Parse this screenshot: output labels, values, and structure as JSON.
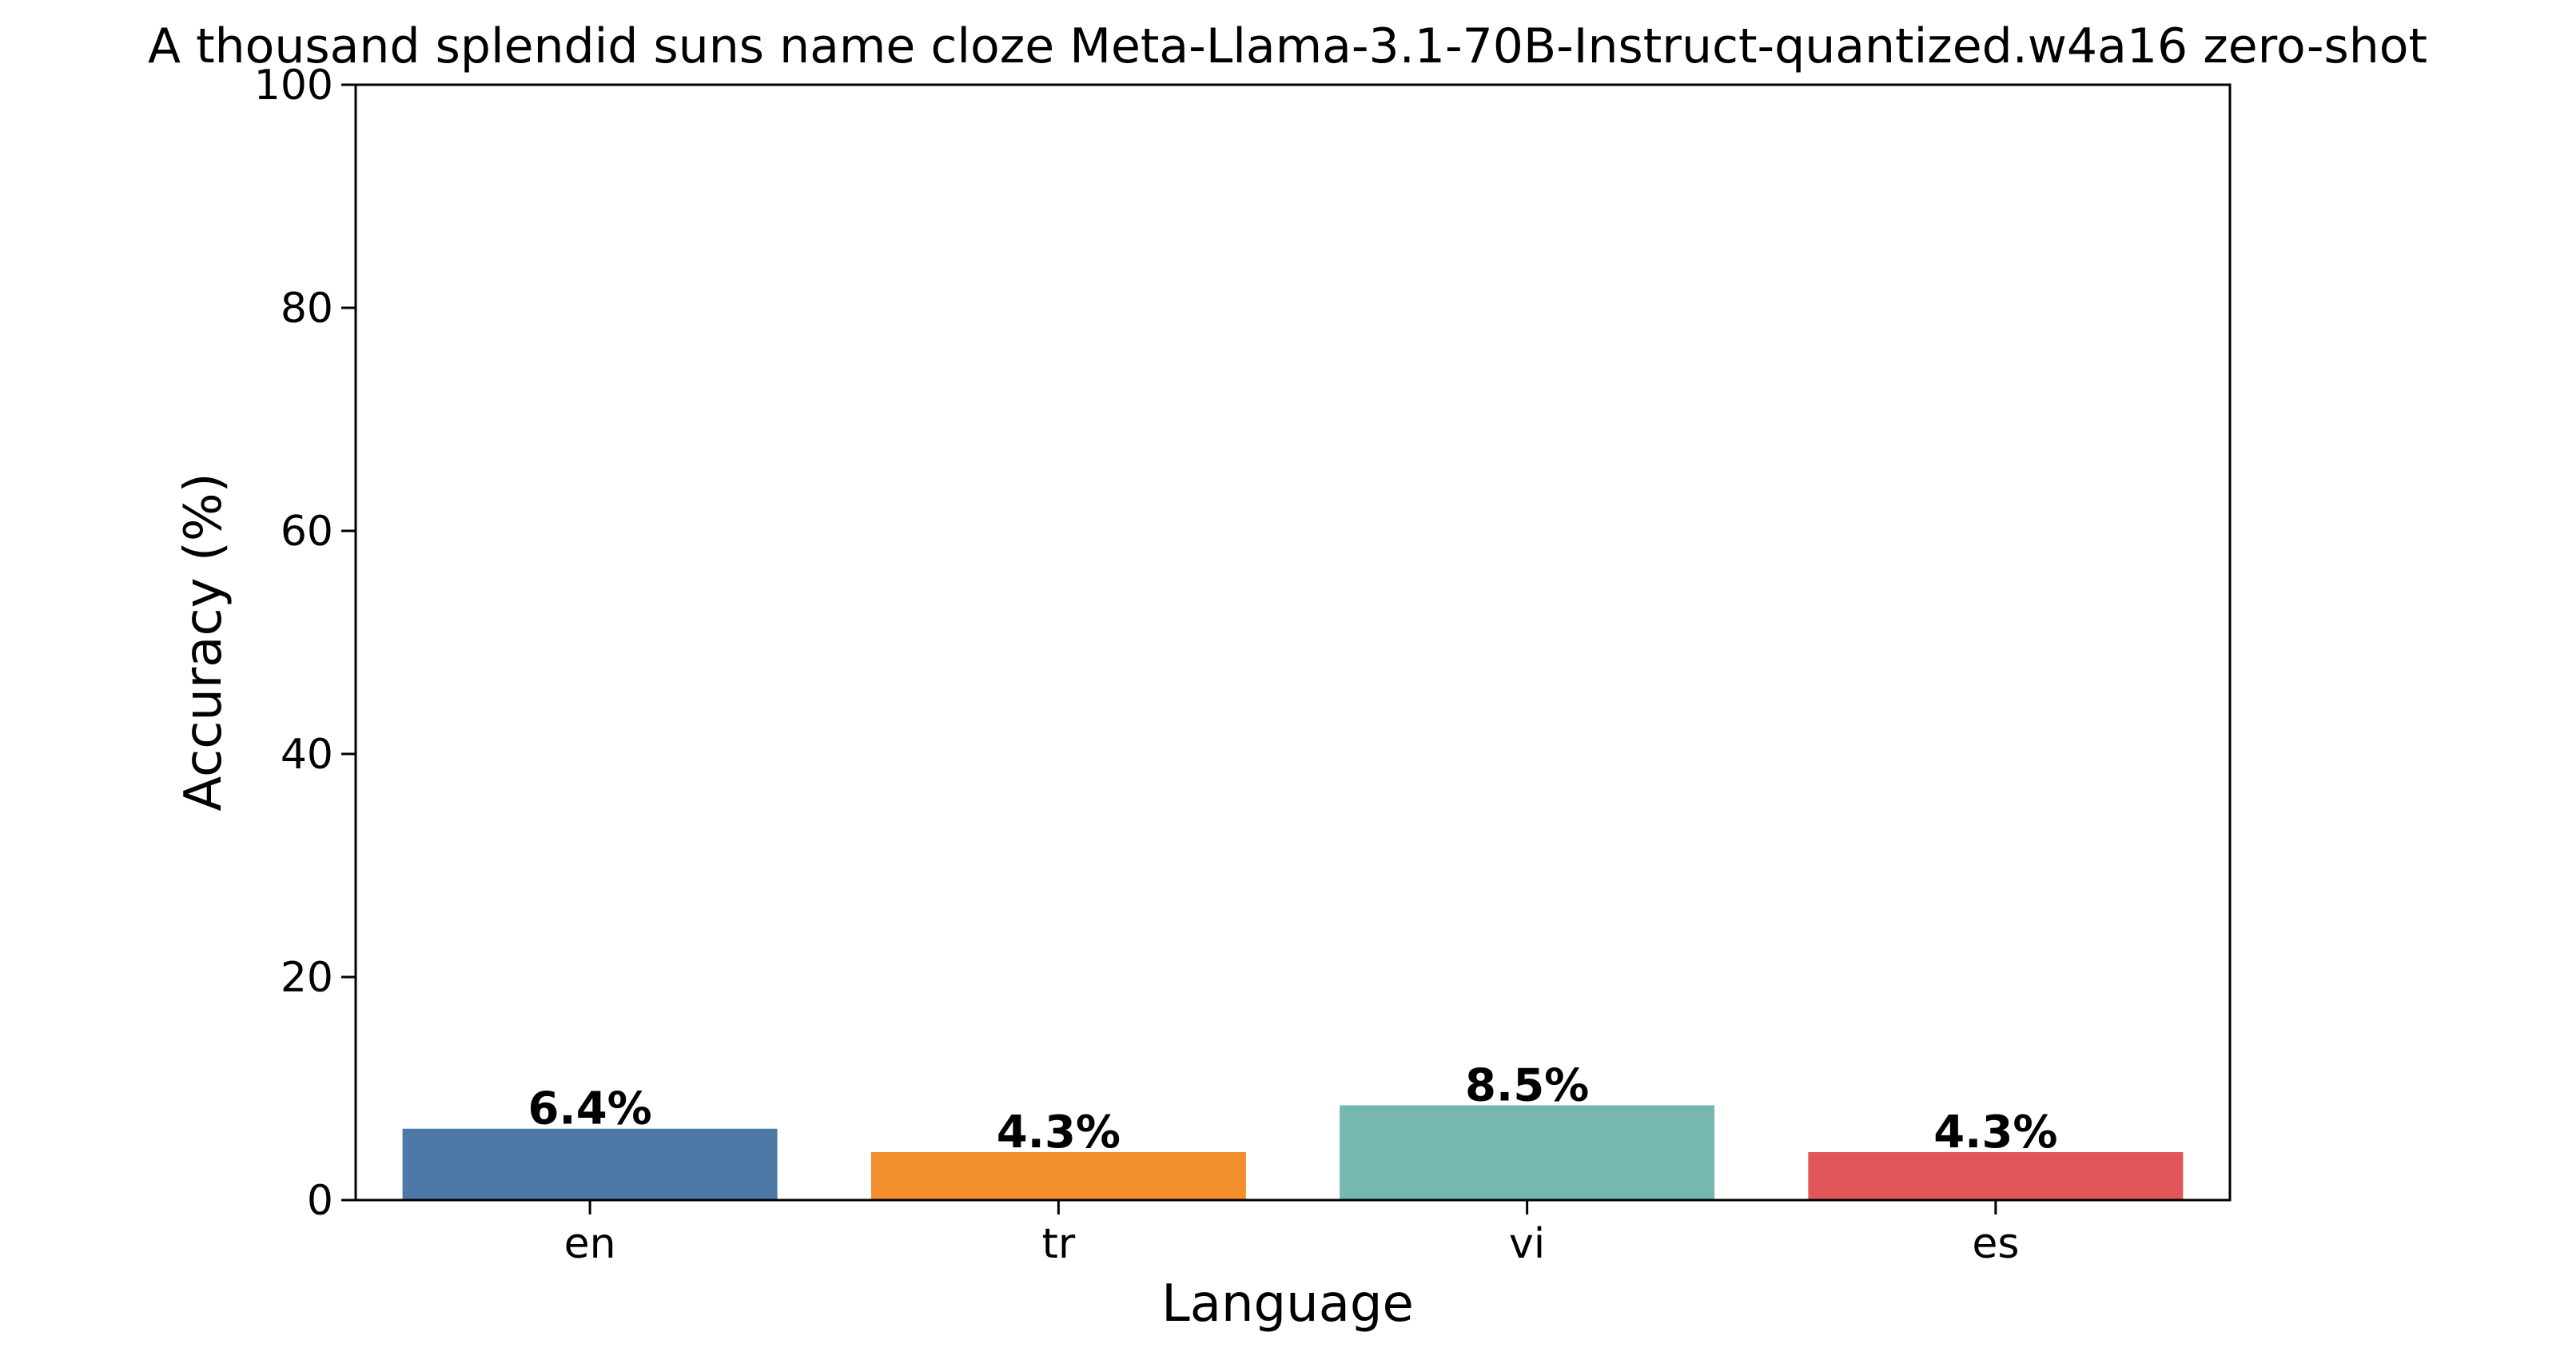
{
  "chart_data": {
    "type": "bar",
    "title": "A thousand splendid suns name cloze Meta-Llama-3.1-70B-Instruct-quantized.w4a16 zero-shot",
    "xlabel": "Language",
    "ylabel": "Accuracy (%)",
    "categories": [
      "en",
      "tr",
      "vi",
      "es"
    ],
    "values": [
      6.4,
      4.3,
      8.5,
      4.3
    ],
    "value_labels": [
      "6.4%",
      "4.3%",
      "8.5%",
      "4.3%"
    ],
    "colors": [
      "#4e79a7",
      "#f28e2b",
      "#76b7b2",
      "#e15759"
    ],
    "ylim": [
      0,
      100
    ],
    "yticks": [
      0,
      20,
      40,
      60,
      80,
      100
    ],
    "ytick_labels": [
      "0",
      "20",
      "40",
      "60",
      "80",
      "100"
    ],
    "grid": false,
    "legend": "none"
  }
}
